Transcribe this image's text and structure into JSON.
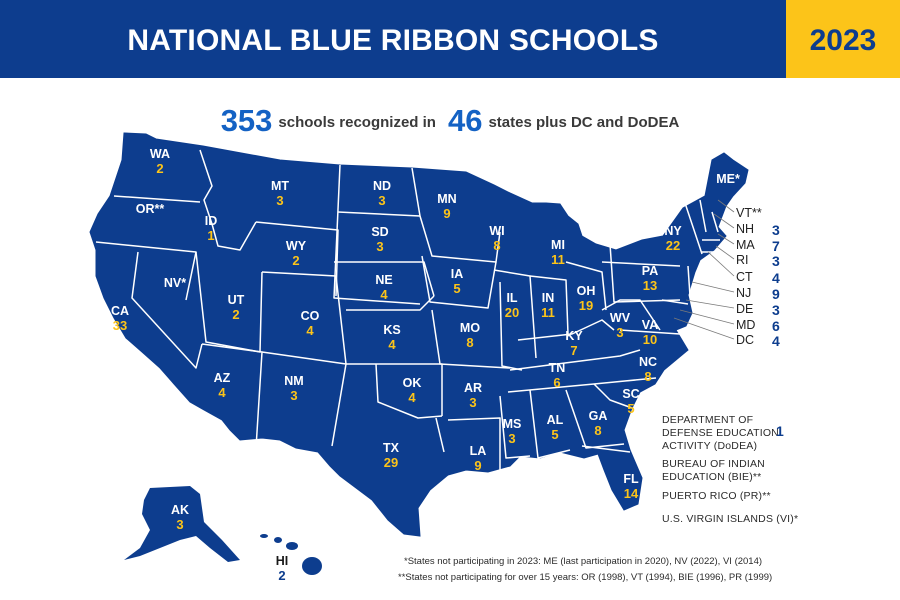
{
  "header": {
    "title": "NATIONAL BLUE RIBBON SCHOOLS",
    "year": "2023"
  },
  "summary": {
    "schools_count": "353",
    "schools_text": "schools recognized in",
    "states_count": "46",
    "states_text": "states plus DC and DoDEA"
  },
  "colors": {
    "map_fill": "#0d3d8e",
    "accent_number": "#fcc419",
    "header_bg": "#0d3d8e",
    "year_bg": "#fcc419"
  },
  "states": [
    {
      "abbr": "WA",
      "count": "2"
    },
    {
      "abbr": "OR**",
      "count": ""
    },
    {
      "abbr": "ID",
      "count": "1"
    },
    {
      "abbr": "MT",
      "count": "3"
    },
    {
      "abbr": "ND",
      "count": "3"
    },
    {
      "abbr": "MN",
      "count": "9"
    },
    {
      "abbr": "WI",
      "count": "8"
    },
    {
      "abbr": "MI",
      "count": "11"
    },
    {
      "abbr": "NY",
      "count": "22"
    },
    {
      "abbr": "ME*",
      "count": ""
    },
    {
      "abbr": "WY",
      "count": "2"
    },
    {
      "abbr": "SD",
      "count": "3"
    },
    {
      "abbr": "NV*",
      "count": ""
    },
    {
      "abbr": "UT",
      "count": "2"
    },
    {
      "abbr": "CO",
      "count": "4"
    },
    {
      "abbr": "NE",
      "count": "4"
    },
    {
      "abbr": "IA",
      "count": "5"
    },
    {
      "abbr": "IL",
      "count": "20"
    },
    {
      "abbr": "IN",
      "count": "11"
    },
    {
      "abbr": "OH",
      "count": "19"
    },
    {
      "abbr": "PA",
      "count": "13"
    },
    {
      "abbr": "CA",
      "count": "33"
    },
    {
      "abbr": "KS",
      "count": "4"
    },
    {
      "abbr": "MO",
      "count": "8"
    },
    {
      "abbr": "WV",
      "count": "3"
    },
    {
      "abbr": "VA",
      "count": "10"
    },
    {
      "abbr": "KY",
      "count": "7"
    },
    {
      "abbr": "AZ",
      "count": "4"
    },
    {
      "abbr": "NM",
      "count": "3"
    },
    {
      "abbr": "OK",
      "count": "4"
    },
    {
      "abbr": "AR",
      "count": "3"
    },
    {
      "abbr": "TN",
      "count": "6"
    },
    {
      "abbr": "NC",
      "count": "8"
    },
    {
      "abbr": "SC",
      "count": "5"
    },
    {
      "abbr": "MS",
      "count": "3"
    },
    {
      "abbr": "AL",
      "count": "5"
    },
    {
      "abbr": "GA",
      "count": "8"
    },
    {
      "abbr": "TX",
      "count": "29"
    },
    {
      "abbr": "LA",
      "count": "9"
    },
    {
      "abbr": "FL",
      "count": "14"
    },
    {
      "abbr": "AK",
      "count": "3"
    },
    {
      "abbr": "HI",
      "count": "2"
    }
  ],
  "northeast": [
    {
      "abbr": "VT**",
      "count": ""
    },
    {
      "abbr": "NH",
      "count": "3"
    },
    {
      "abbr": "MA",
      "count": "7"
    },
    {
      "abbr": "RI",
      "count": "3"
    },
    {
      "abbr": "CT",
      "count": "4"
    },
    {
      "abbr": "NJ",
      "count": "9"
    },
    {
      "abbr": "DE",
      "count": "3"
    },
    {
      "abbr": "MD",
      "count": "6"
    },
    {
      "abbr": "DC",
      "count": "4"
    }
  ],
  "others": [
    {
      "label": "DEPARTMENT OF DEFENSE EDUCATION ACTIVITY (DoDEA)",
      "count": "1"
    },
    {
      "label": "BUREAU OF INDIAN EDUCATION (BIE)**",
      "count": ""
    },
    {
      "label": "PUERTO RICO (PR)**",
      "count": ""
    },
    {
      "label": "U.S. VIRGIN ISLANDS (VI)*",
      "count": ""
    }
  ],
  "footnotes": [
    "*States not participating in 2023: ME (last participation in 2020), NV (2022), VI (2014)",
    "**States not participating for over 15 years: OR (1998), VT (1994), BIE (1996), PR (1999)"
  ]
}
